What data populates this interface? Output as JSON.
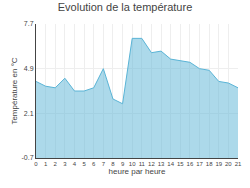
{
  "chart_data": {
    "type": "area",
    "title": "Evolution de la température",
    "xlabel": "heure par heure",
    "ylabel": "Température en °C",
    "x": [
      0,
      1,
      2,
      3,
      4,
      5,
      6,
      7,
      8,
      9,
      10,
      11,
      12,
      13,
      14,
      15,
      16,
      17,
      18,
      19,
      20,
      21
    ],
    "values": [
      4.1,
      3.8,
      3.7,
      4.3,
      3.5,
      3.5,
      3.7,
      4.9,
      3.0,
      2.7,
      6.8,
      6.8,
      5.9,
      6.0,
      5.5,
      5.4,
      5.3,
      4.9,
      4.8,
      4.1,
      4.0,
      3.7
    ],
    "color": "#5ab4d6",
    "xlim": [
      0,
      21
    ],
    "xticks": [
      0,
      1,
      2,
      3,
      4,
      5,
      6,
      7,
      8,
      9,
      10,
      11,
      12,
      13,
      14,
      15,
      16,
      17,
      18,
      19,
      20,
      21
    ],
    "ylim": [
      -0.7,
      7.7
    ],
    "yticks": [
      -0.7,
      2.1,
      4.9,
      7.7
    ],
    "grid": true
  }
}
